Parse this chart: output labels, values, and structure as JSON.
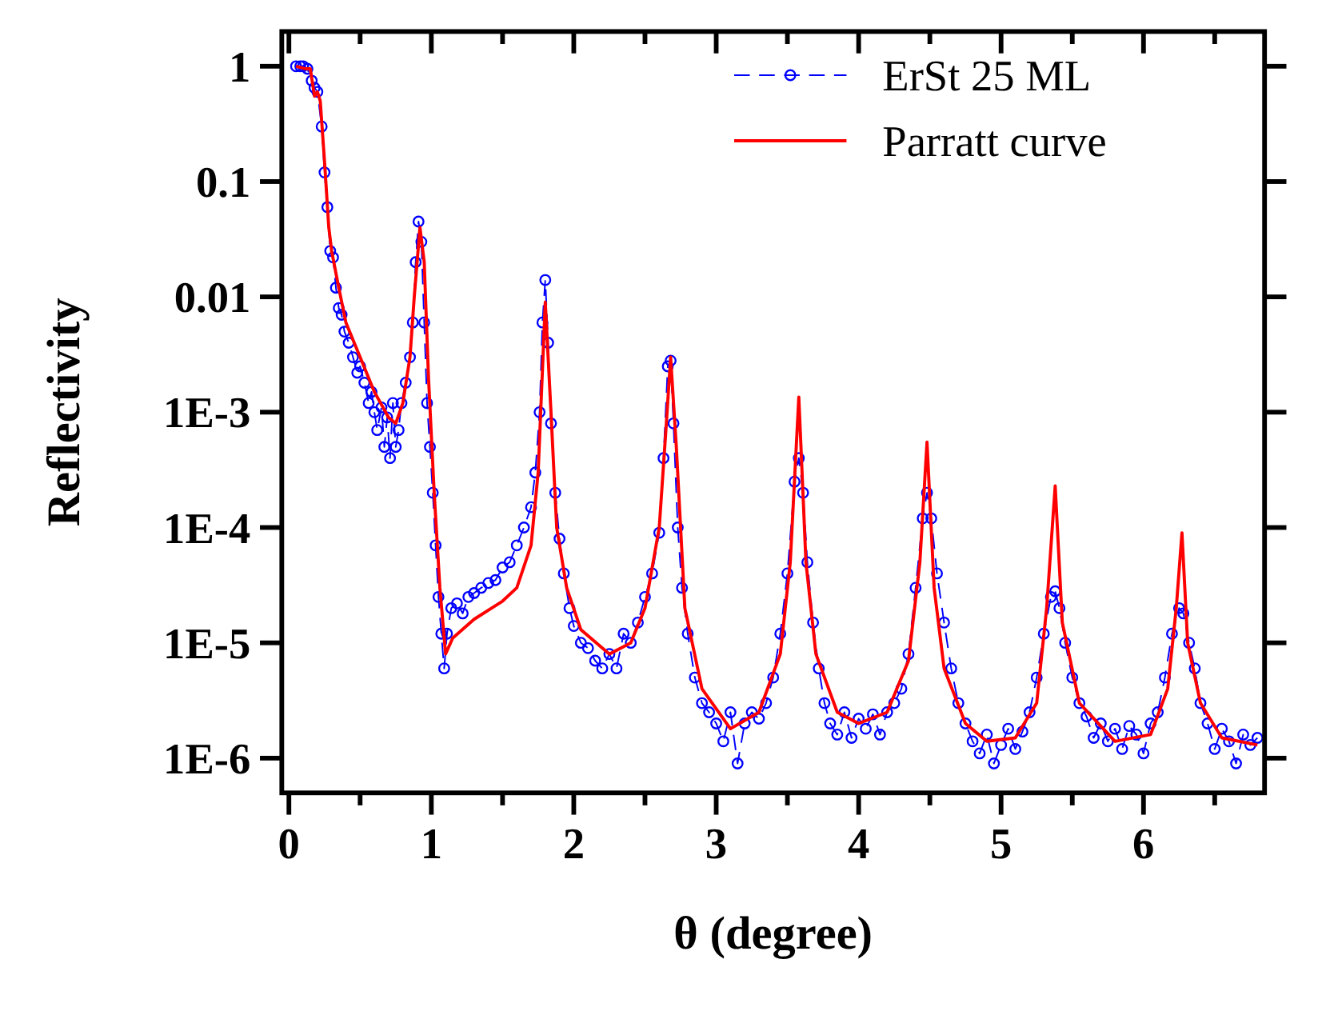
{
  "chart_data": {
    "type": "line",
    "xlabel": "θ (degree)",
    "ylabel": "Reflectivity",
    "log": "y",
    "xlim": [
      -0.05,
      6.85
    ],
    "ylim": [
      5e-07,
      2
    ],
    "xticks": [
      0,
      {
        "value": 0.5,
        "label": null
      },
      1,
      {
        "value": 1.5,
        "label": null
      },
      2,
      {
        "value": 2.5,
        "label": null
      },
      3,
      {
        "value": 3.5,
        "label": null
      },
      4,
      {
        "value": 4.5,
        "label": null
      },
      5,
      {
        "value": 5.5,
        "label": null
      },
      6,
      {
        "value": 6.5,
        "label": null
      }
    ],
    "yticks": [
      1,
      0.1,
      0.01,
      {
        "value": 0.001,
        "label": "1E-3"
      },
      {
        "value": 0.0001,
        "label": "1E-4"
      },
      {
        "value": 1e-05,
        "label": "1E-5"
      },
      {
        "value": 1e-06,
        "label": "1E-6"
      }
    ],
    "grid": false,
    "legend": "top right",
    "series": [
      {
        "name": "ErSt 25 ML",
        "color": "#0000ff",
        "marker": "circle",
        "line_style": "dashed",
        "x": [
          0.05,
          0.08,
          0.1,
          0.13,
          0.16,
          0.18,
          0.2,
          0.23,
          0.25,
          0.27,
          0.29,
          0.31,
          0.33,
          0.35,
          0.37,
          0.39,
          0.42,
          0.45,
          0.48,
          0.5,
          0.53,
          0.56,
          0.58,
          0.6,
          0.62,
          0.65,
          0.67,
          0.69,
          0.71,
          0.73,
          0.75,
          0.77,
          0.79,
          0.82,
          0.85,
          0.87,
          0.89,
          0.91,
          0.93,
          0.95,
          0.97,
          0.99,
          1.01,
          1.03,
          1.05,
          1.07,
          1.09,
          1.11,
          1.14,
          1.18,
          1.22,
          1.26,
          1.3,
          1.35,
          1.4,
          1.45,
          1.5,
          1.55,
          1.6,
          1.65,
          1.7,
          1.73,
          1.76,
          1.78,
          1.8,
          1.82,
          1.84,
          1.87,
          1.9,
          1.93,
          1.97,
          2.0,
          2.05,
          2.1,
          2.15,
          2.2,
          2.25,
          2.3,
          2.35,
          2.4,
          2.45,
          2.5,
          2.55,
          2.6,
          2.63,
          2.66,
          2.68,
          2.7,
          2.73,
          2.76,
          2.8,
          2.85,
          2.9,
          2.95,
          3.0,
          3.05,
          3.1,
          3.15,
          3.2,
          3.25,
          3.3,
          3.35,
          3.4,
          3.45,
          3.5,
          3.55,
          3.58,
          3.61,
          3.64,
          3.68,
          3.72,
          3.76,
          3.8,
          3.85,
          3.9,
          3.95,
          4.0,
          4.05,
          4.1,
          4.15,
          4.2,
          4.25,
          4.3,
          4.35,
          4.4,
          4.45,
          4.48,
          4.51,
          4.55,
          4.6,
          4.65,
          4.7,
          4.75,
          4.8,
          4.85,
          4.9,
          4.95,
          5.0,
          5.05,
          5.1,
          5.15,
          5.2,
          5.25,
          5.3,
          5.35,
          5.38,
          5.41,
          5.45,
          5.5,
          5.55,
          5.6,
          5.65,
          5.7,
          5.75,
          5.8,
          5.85,
          5.9,
          5.95,
          6.0,
          6.05,
          6.1,
          6.15,
          6.2,
          6.25,
          6.28,
          6.32,
          6.36,
          6.4,
          6.45,
          6.5,
          6.55,
          6.6,
          6.65,
          6.7,
          6.75,
          6.8
        ],
        "values": [
          1,
          1,
          1,
          0.95,
          0.75,
          0.65,
          0.6,
          0.3,
          0.12,
          0.06,
          0.025,
          0.022,
          0.012,
          0.008,
          0.007,
          0.005,
          0.004,
          0.003,
          0.0022,
          0.0025,
          0.0018,
          0.0012,
          0.0015,
          0.001,
          0.0007,
          0.0011,
          0.0005,
          0.0009,
          0.0004,
          0.0012,
          0.0005,
          0.0007,
          0.0012,
          0.0018,
          0.003,
          0.006,
          0.02,
          0.045,
          0.03,
          0.006,
          0.0012,
          0.0005,
          0.0002,
          7e-05,
          2.5e-05,
          1.2e-05,
          6e-06,
          1.2e-05,
          2e-05,
          2.2e-05,
          1.8e-05,
          2.5e-05,
          2.7e-05,
          3e-05,
          3.3e-05,
          3.5e-05,
          4.5e-05,
          5e-05,
          7e-05,
          0.0001,
          0.00015,
          0.0003,
          0.001,
          0.006,
          0.014,
          0.004,
          0.0008,
          0.0002,
          8e-05,
          4e-05,
          2e-05,
          1.4e-05,
          1e-05,
          9e-06,
          7e-06,
          6e-06,
          8e-06,
          6e-06,
          1.2e-05,
          1e-05,
          1.5e-05,
          2.5e-05,
          4e-05,
          9e-05,
          0.0004,
          0.0025,
          0.0028,
          0.0008,
          0.0001,
          3e-05,
          1.2e-05,
          5e-06,
          3e-06,
          2.5e-06,
          2e-06,
          1.4e-06,
          2.5e-06,
          9e-07,
          2e-06,
          2.5e-06,
          2.2e-06,
          3e-06,
          5e-06,
          1.2e-05,
          4e-05,
          0.00025,
          0.0004,
          0.0002,
          5e-05,
          1.5e-05,
          6e-06,
          3e-06,
          2e-06,
          1.6e-06,
          2.5e-06,
          1.5e-06,
          2.2e-06,
          1.8e-06,
          2.4e-06,
          1.6e-06,
          2.5e-06,
          3e-06,
          4e-06,
          8e-06,
          3e-05,
          0.00012,
          0.0002,
          0.00012,
          4e-05,
          1.5e-05,
          6e-06,
          3e-06,
          2e-06,
          1.4e-06,
          1.1e-06,
          1.6e-06,
          9e-07,
          1.3e-06,
          1.8e-06,
          1.2e-06,
          1.7e-06,
          2.5e-06,
          5e-06,
          1.2e-05,
          2.5e-05,
          2.8e-05,
          2e-05,
          1e-05,
          5e-06,
          3e-06,
          2.3e-06,
          1.5e-06,
          2e-06,
          1.4e-06,
          1.8e-06,
          1.2e-06,
          1.9e-06,
          1.6e-06,
          1.1e-06,
          2e-06,
          2.5e-06,
          5e-06,
          1.2e-05,
          2e-05,
          1.8e-05,
          1e-05,
          6e-06,
          3e-06,
          2e-06,
          1.2e-06,
          1.8e-06,
          1.4e-06,
          9e-07,
          1.6e-06,
          1.3e-06,
          1.5e-06
        ]
      },
      {
        "name": "Parratt curve",
        "color": "#ff0000",
        "marker": "none",
        "line_style": "solid",
        "x": [
          0.05,
          0.12,
          0.15,
          0.18,
          0.2,
          0.22,
          0.25,
          0.28,
          0.3,
          0.35,
          0.4,
          0.5,
          0.6,
          0.7,
          0.75,
          0.8,
          0.85,
          0.88,
          0.92,
          0.95,
          0.98,
          1.02,
          1.06,
          1.1,
          1.15,
          1.3,
          1.5,
          1.6,
          1.7,
          1.75,
          1.8,
          1.84,
          1.88,
          1.95,
          2.05,
          2.25,
          2.4,
          2.5,
          2.6,
          2.65,
          2.68,
          2.72,
          2.78,
          2.9,
          3.1,
          3.3,
          3.45,
          3.52,
          3.58,
          3.63,
          3.7,
          3.85,
          4.0,
          4.2,
          4.35,
          4.43,
          4.48,
          4.53,
          4.6,
          4.75,
          4.9,
          5.1,
          5.25,
          5.32,
          5.38,
          5.43,
          5.55,
          5.8,
          6.05,
          6.17,
          6.23,
          6.27,
          6.31,
          6.4,
          6.55,
          6.8
        ],
        "values": [
          1,
          0.95,
          0.95,
          0.55,
          0.6,
          0.5,
          0.15,
          0.04,
          0.025,
          0.012,
          0.006,
          0.003,
          0.0015,
          0.0009,
          0.0008,
          0.0012,
          0.003,
          0.01,
          0.04,
          0.02,
          0.002,
          0.0002,
          3e-05,
          8e-06,
          1.1e-05,
          1.6e-05,
          2.3e-05,
          3e-05,
          7e-05,
          0.0003,
          0.009,
          0.001,
          0.0001,
          3e-05,
          1.3e-05,
          8e-06,
          1e-05,
          2e-05,
          0.0001,
          0.0008,
          0.003,
          0.0005,
          2e-05,
          4e-06,
          1.8e-06,
          2.5e-06,
          8e-06,
          5e-05,
          0.00135,
          5e-05,
          8e-06,
          2.5e-06,
          2e-06,
          2.5e-06,
          7e-06,
          5e-05,
          0.00055,
          3e-05,
          6e-06,
          2e-06,
          1.4e-06,
          1.5e-06,
          3e-06,
          2e-05,
          0.00023,
          1.5e-05,
          3e-06,
          1.4e-06,
          1.6e-06,
          4e-06,
          2e-05,
          9e-05,
          1e-05,
          3e-06,
          1.5e-06,
          1.3e-06
        ]
      }
    ]
  }
}
